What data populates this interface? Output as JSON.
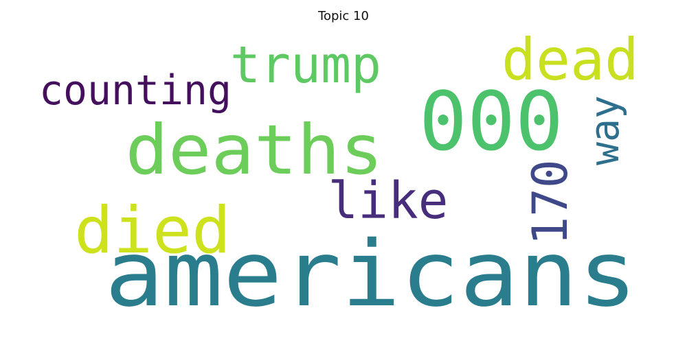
{
  "title": "Topic 10",
  "words": [
    {
      "text": "americans",
      "color": "#2a7d8c"
    },
    {
      "text": "deaths",
      "color": "#6ccd5a"
    },
    {
      "text": "000",
      "color": "#4cc26c"
    },
    {
      "text": "died",
      "color": "#cde11d"
    },
    {
      "text": "trump",
      "color": "#5ec962"
    },
    {
      "text": "dead",
      "color": "#c8e020"
    },
    {
      "text": "counting",
      "color": "#440f5c"
    },
    {
      "text": "like",
      "color": "#472d7b"
    },
    {
      "text": "170",
      "color": "#3f4889"
    },
    {
      "text": "way",
      "color": "#2e6f8e"
    }
  ]
}
